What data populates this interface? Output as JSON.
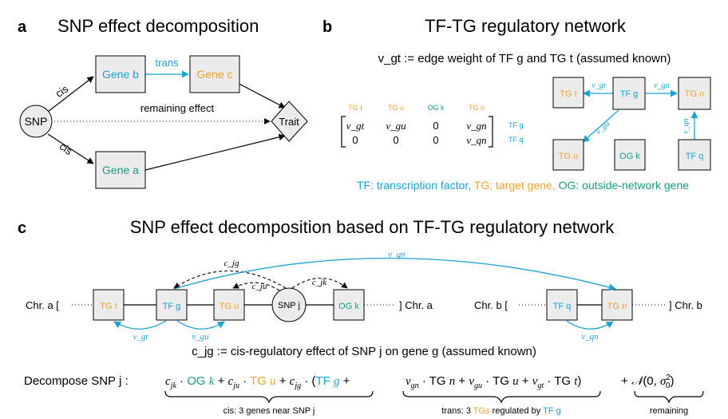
{
  "colors": {
    "tf": "#1ba1d2",
    "tg": "#f0a030",
    "og": "#1a9a82"
  },
  "panel_a": {
    "letter": "a",
    "title": "SNP effect decomposition",
    "snp": "SNP",
    "trait": "Trait",
    "gene_b": "Gene b",
    "gene_c": "Gene c",
    "gene_a": "Gene a",
    "trans": "trans",
    "cis_top": "cis",
    "cis_bottom": "cis",
    "remaining": "remaining effect"
  },
  "panel_b": {
    "letter": "b",
    "title": "TF-TG regulatory network",
    "definition": "v_gt := edge weight of TF g and TG t (assumed known)",
    "matrix": {
      "col_headers": [
        "TG t",
        "TG u",
        "OG k",
        "TG n"
      ],
      "rows": [
        [
          "v_gt",
          "v_gu",
          "0",
          "v_gn"
        ],
        [
          "0",
          "0",
          "0",
          "v_qn"
        ]
      ],
      "row_labels": [
        "TF g",
        "TF q"
      ]
    },
    "nodes": {
      "tg_t": "TG t",
      "tf_g": "TF g",
      "tg_n": "TG n",
      "tg_u": "TG u",
      "og_k": "OG k",
      "tf_q": "TF q"
    },
    "edges": [
      "v_gt",
      "v_gn",
      "v_gu",
      "v_qn"
    ],
    "legend": {
      "tf": "TF: transcription factor,",
      "tg": "TG: target gene,",
      "og": "OG: outside-network gene"
    }
  },
  "panel_c": {
    "letter": "c",
    "title": "SNP effect decomposition based on TF-TG regulatory network",
    "chr_a_left": "Chr. a [",
    "chr_a_right": "] Chr. a",
    "chr_b_left": "Chr. b [",
    "chr_b_right": "] Chr. b",
    "nodes": {
      "tg_t": "TG t",
      "tf_g": "TF g",
      "tg_u": "TG u",
      "snp_j": "SNP j",
      "og_k": "OG k",
      "tf_q": "TF q",
      "tg_n": "TG n"
    },
    "edges": {
      "c_jg": "c_jg",
      "c_ju": "c_ju",
      "c_jk": "c_jk",
      "v_gn_top": "v_gn",
      "v_gt": "v_gt",
      "v_gu": "v_gu",
      "v_qn": "v_qn"
    },
    "definition": "c_jg := cis-regulatory effect of SNP j on gene g (assumed known)",
    "equation": {
      "lead": "Decompose SNP j :",
      "cis_label": "cis: 3 genes near SNP j",
      "trans_label_pre": "trans: 3",
      "trans_label_tgs": "TGs",
      "trans_label_mid": "regulated by",
      "trans_label_tf": "TF g",
      "remaining_label": "remaining"
    }
  }
}
